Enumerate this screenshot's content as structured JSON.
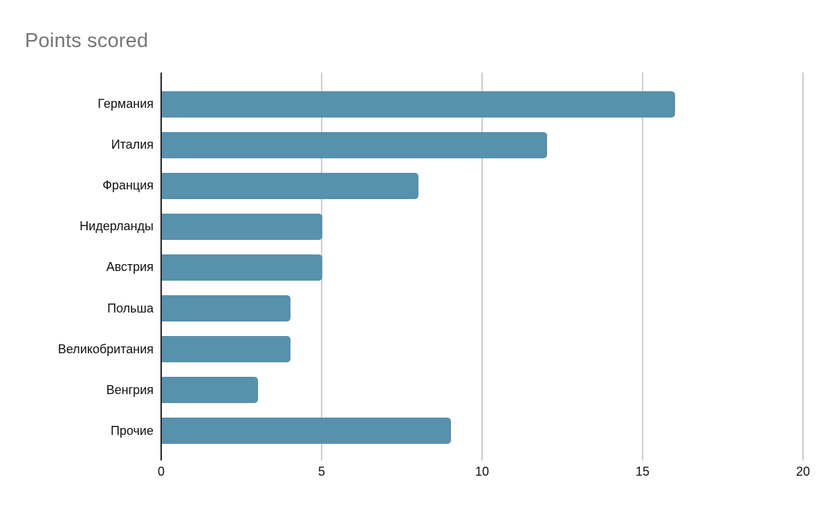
{
  "title": "Points scored",
  "chart_data": {
    "type": "bar",
    "orientation": "horizontal",
    "title": "Points scored",
    "categories": [
      "Германия",
      "Италия",
      "Франция",
      "Нидерланды",
      "Австрия",
      "Польша",
      "Великобритания",
      "Венгрия",
      "Прочие"
    ],
    "values": [
      16,
      12,
      8,
      5,
      5,
      4,
      4,
      3,
      9
    ],
    "xlabel": "",
    "ylabel": "",
    "xlim": [
      0,
      20
    ],
    "xticks": [
      0,
      5,
      10,
      15,
      20
    ],
    "grid": true,
    "legend": false
  },
  "colors": {
    "bar": "#5891ac",
    "title_text": "#757575",
    "gridline": "#cccccc",
    "axis_line": "#212121",
    "label_text": "#111111"
  }
}
